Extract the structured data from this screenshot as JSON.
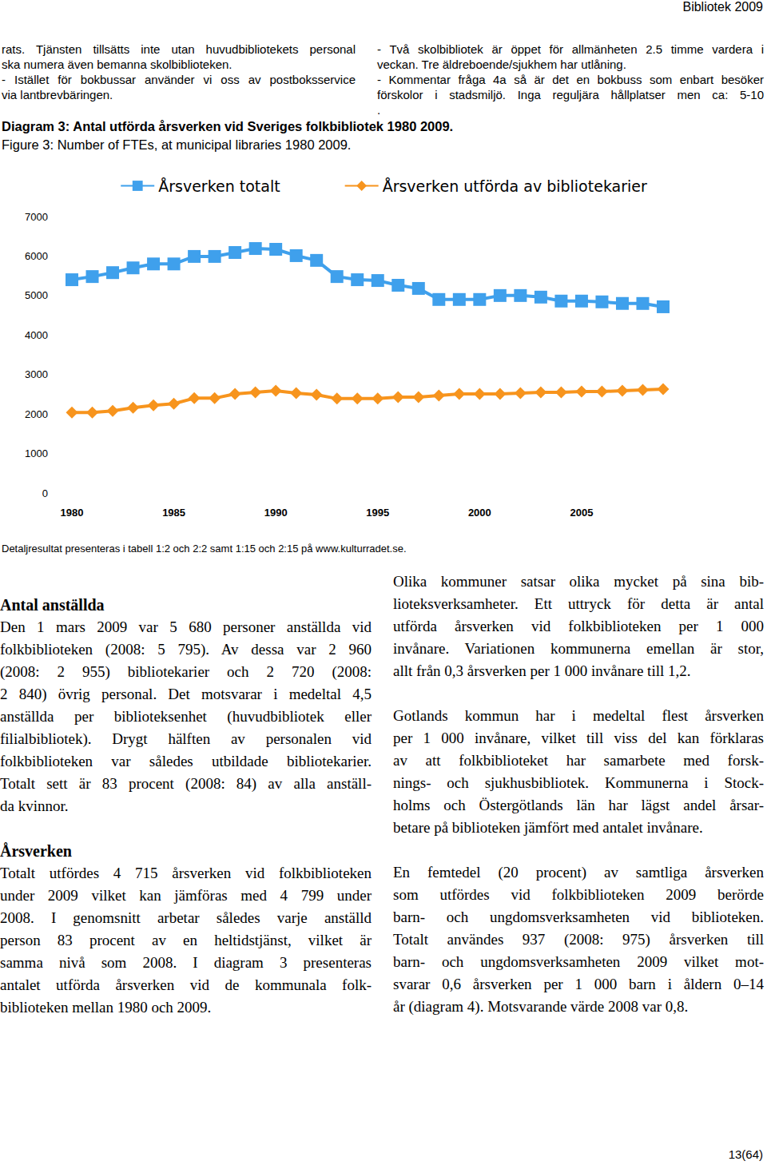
{
  "header": {
    "running_title": "Bibliotek 2009"
  },
  "top_notes": {
    "left": [
      "rats. Tjänsten tillsätts inte utan huvudbibliotekets personal",
      "ska numera även bemanna skolbiblioteken.",
      "- Istället för bokbussar använder vi oss av postboksservice",
      "via lantbrevbäringen."
    ],
    "right": [
      "- Två skolbibliotek är öppet för allmänheten 2.5 timme vardera i",
      "veckan. Tre äldreboende/sjukhem har utlåning.",
      "- Kommentar fråga 4a så är det en bokbuss som enbart besöker",
      "förskolor i stadsmiljö. Inga reguljära hållplatser men ca: 5-10",
      "."
    ]
  },
  "figure": {
    "title": "Diagram 3: Antal utförda årsverken vid Sveriges folkbibliotek 1980 2009.",
    "subtitle": "Figure 3: Number of FTEs, at municipal libraries 1980 2009.",
    "note": "Detaljresultat presenteras i tabell 1:2 och 2:2 samt 1:15 och 2:15 på www.kulturradet.se."
  },
  "chart_data": {
    "type": "line",
    "categories": [
      "1980",
      null,
      null,
      null,
      null,
      "1985",
      null,
      null,
      null,
      null,
      "1990",
      null,
      null,
      null,
      null,
      "1995",
      null,
      null,
      null,
      null,
      "2000",
      null,
      null,
      null,
      null,
      "2005",
      null,
      null,
      null,
      null
    ],
    "series": [
      {
        "name": "Årsverken totalt",
        "color": "#3fa0ec",
        "marker": "square",
        "line_style": "solid",
        "values": [
          5400,
          5480,
          5580,
          5700,
          5800,
          5800,
          5990,
          5990,
          6090,
          6190,
          6170,
          6010,
          5890,
          5480,
          5400,
          5380,
          5260,
          5180,
          4900,
          4900,
          4900,
          5000,
          5000,
          4960,
          4860,
          4860,
          4840,
          4800,
          4799,
          4715
        ]
      },
      {
        "name": "Årsverken utförda av bibliotekarier",
        "color": "#f7941d",
        "marker": "diamond",
        "line_style": "solid",
        "values": [
          2040,
          2040,
          2080,
          2160,
          2220,
          2260,
          2400,
          2400,
          2510,
          2550,
          2590,
          2530,
          2490,
          2390,
          2390,
          2390,
          2430,
          2430,
          2470,
          2510,
          2510,
          2510,
          2530,
          2550,
          2550,
          2570,
          2570,
          2590,
          2610,
          2630
        ]
      }
    ],
    "ylim": [
      0,
      7000
    ],
    "yticks": [
      0,
      1000,
      2000,
      3000,
      4000,
      5000,
      6000,
      7000
    ],
    "grid": false,
    "legend": "top"
  },
  "body": {
    "left": [
      {
        "heading": "Antal anställda",
        "lines": [
          "Den 1 mars 2009 var 5 680 personer anställda vid",
          "folkbiblioteken (2008: 5 795). Av dessa var 2 960",
          "(2008: 2 955) bibliotekarier och 2 720 (2008:",
          "2 840) övrig personal. Det motsvarar i medeltal 4,5",
          "anställda per biblioteksenhet (huvudbibliotek eller",
          "filialbibliotek). Drygt hälften av personalen vid",
          "folkbiblioteken var således utbildade bibliotekarier.",
          "Totalt sett är 83 procent (2008: 84) av alla anställ-",
          "da kvinnor."
        ]
      },
      {
        "heading": "Årsverken",
        "lines": [
          "Totalt utfördes 4 715 årsverken vid folkbiblioteken",
          "under 2009 vilket kan jämföras med 4 799 under",
          "2008. I genomsnitt arbetar således varje anställd",
          "person 83 procent av en heltidstjänst, vilket är",
          "samma nivå som 2008. I diagram 3 presenteras",
          "antalet utförda årsverken vid de kommunala folk-",
          "biblioteken mellan 1980 och 2009."
        ]
      }
    ],
    "right": [
      {
        "lines": [
          "Olika kommuner satsar olika mycket på sina bib-",
          "lioteksverksamheter. Ett uttryck för detta är antal",
          "utförda årsverken vid folkbiblioteken per 1 000",
          "invånare. Variationen kommunerna emellan är stor,",
          "allt från 0,3 årsverken per 1 000 invånare till 1,2."
        ]
      },
      {
        "lines": [
          "Gotlands kommun har i medeltal flest årsverken",
          "per 1 000 invånare, vilket till viss del kan förklaras",
          "av att folkbiblioteket har samarbete med forsk-",
          "nings- och sjukhusbibliotek. Kommunerna i Stock-",
          "holms och Östergötlands län har lägst andel årsar-",
          "betare på biblioteken jämfört med antalet invånare."
        ]
      },
      {
        "lines": [
          "En femtedel (20 procent) av samtliga årsverken",
          "som utfördes vid folkbiblioteken 2009 berörde",
          "barn- och ungdomsverksamheten vid biblioteken.",
          "Totalt användes 937 (2008: 975) årsverken till",
          "barn- och ungdomsverksamheten 2009 vilket mot-",
          "svarar 0,6 årsverken per 1 000 barn i åldern 0–14",
          "år (diagram 4). Motsvarande värde 2008 var 0,8."
        ]
      }
    ]
  },
  "footer": {
    "page": "13(64)"
  }
}
